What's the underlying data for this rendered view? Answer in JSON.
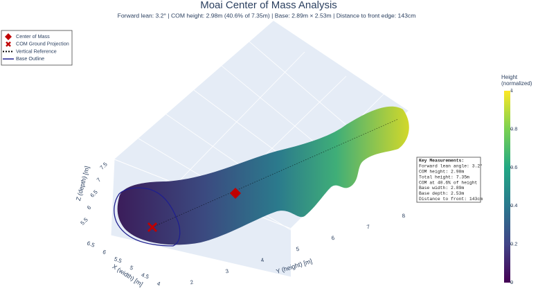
{
  "chart_data": {
    "type": "mesh3d",
    "title": "Moai Center of Mass Analysis",
    "subtitle": "Forward lean: 3.2° | COM height: 2.98m (40.6% of 7.35m) | Base: 2.89m × 2.53m | Distance to front edge: 143cm",
    "series": [
      {
        "name": "Center of Mass",
        "color": "#c00000"
      },
      {
        "name": "COM Ground Projection",
        "color": "#c00000"
      },
      {
        "name": "Vertical Reference",
        "color": "#000000"
      },
      {
        "name": "Base Outline",
        "color": "#1f1f8f"
      }
    ],
    "scene": {
      "xaxis": {
        "title": "X (width) [m]",
        "ticks": [
          4,
          4.5,
          5,
          5.5,
          6,
          6.5
        ]
      },
      "yaxis": {
        "title": "Y (height) [m]",
        "ticks": [
          2,
          3,
          4,
          5,
          6,
          7,
          8
        ]
      },
      "zaxis": {
        "title": "Z (depth) [m]",
        "ticks": [
          5.5,
          6,
          6.5,
          7,
          7.5
        ]
      }
    },
    "colorbar": {
      "title": "Height (normalized)",
      "lim": [
        0,
        1
      ],
      "ticks": [
        0,
        0.2,
        0.4,
        0.6,
        0.8,
        1
      ]
    },
    "annotation": [
      "Key Measurements:",
      "Forward lean angle: 3.2°",
      "COM height: 2.98m",
      "Total height: 7.35m",
      "COM at 40.6% of height",
      "Base width: 2.89m",
      "Base depth: 2.53m",
      "Distance to front: 143cm"
    ]
  }
}
